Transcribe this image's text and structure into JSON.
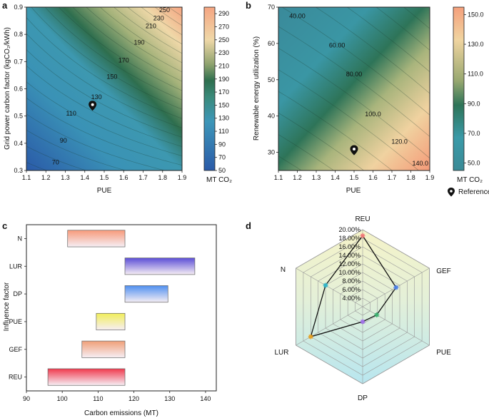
{
  "panels": {
    "a": {
      "label": "a"
    },
    "b": {
      "label": "b"
    },
    "c": {
      "label": "c"
    },
    "d": {
      "label": "d"
    }
  },
  "chart_data": [
    {
      "panel": "a",
      "type": "heatmap",
      "xlabel": "PUE",
      "ylabel": "Grid power carbon factor (kgCO₂/kWh)",
      "xlim": [
        1.1,
        1.9
      ],
      "ylim": [
        0.3,
        0.9
      ],
      "xticks": [
        "1.1",
        "1.2",
        "1.3",
        "1.4",
        "1.5",
        "1.6",
        "1.7",
        "1.8",
        "1.9"
      ],
      "yticks": [
        "0.3",
        "0.4",
        "0.5",
        "0.6",
        "0.7",
        "0.8",
        "0.9"
      ],
      "contour_labels": [
        {
          "text": "70",
          "x": 1.25,
          "y": 0.33
        },
        {
          "text": "90",
          "x": 1.29,
          "y": 0.41
        },
        {
          "text": "110",
          "x": 1.33,
          "y": 0.51
        },
        {
          "text": "130",
          "x": 1.46,
          "y": 0.57
        },
        {
          "text": "150",
          "x": 1.54,
          "y": 0.645
        },
        {
          "text": "170",
          "x": 1.6,
          "y": 0.705
        },
        {
          "text": "190",
          "x": 1.68,
          "y": 0.77
        },
        {
          "text": "210",
          "x": 1.74,
          "y": 0.83
        },
        {
          "text": "230",
          "x": 1.78,
          "y": 0.86
        },
        {
          "text": "250",
          "x": 1.81,
          "y": 0.89
        }
      ],
      "reference_marker": {
        "x": 1.44,
        "y": 0.53
      },
      "colorbar": {
        "title": "MT CO₂",
        "min": 50,
        "max": 300,
        "ticks": [
          "50",
          "70",
          "90",
          "110",
          "130",
          "150",
          "170",
          "190",
          "210",
          "230",
          "250",
          "270",
          "290"
        ]
      }
    },
    {
      "panel": "b",
      "type": "heatmap",
      "xlabel": "PUE",
      "ylabel": "Renewable energy utilization (%)",
      "xlim": [
        1.1,
        1.9
      ],
      "ylim": [
        25,
        70
      ],
      "xticks": [
        "1.1",
        "1.2",
        "1.3",
        "1.4",
        "1.5",
        "1.6",
        "1.7",
        "1.8",
        "1.9"
      ],
      "yticks": [
        "30",
        "40",
        "50",
        "60",
        "70"
      ],
      "contour_labels": [
        {
          "text": "40.00",
          "x": 1.2,
          "y": 67.5
        },
        {
          "text": "60.00",
          "x": 1.41,
          "y": 59.5
        },
        {
          "text": "80.00",
          "x": 1.5,
          "y": 51.5
        },
        {
          "text": "100.0",
          "x": 1.6,
          "y": 40.5
        },
        {
          "text": "120.0",
          "x": 1.74,
          "y": 33.0
        },
        {
          "text": "140.0",
          "x": 1.85,
          "y": 27.0
        }
      ],
      "reference_marker": {
        "x": 1.5,
        "y": 30
      },
      "colorbar": {
        "title": "MT CO₂",
        "min": 45,
        "max": 155,
        "ticks": [
          "50.0",
          "70.0",
          "90.0",
          "110.0",
          "130.0",
          "150.0"
        ]
      },
      "legend": {
        "label": "Reference"
      }
    },
    {
      "panel": "c",
      "type": "bar",
      "orientation": "horizontal",
      "xlabel": "Carbon emissions (MT)",
      "ylabel": "Influence factor",
      "xlim": [
        90,
        143
      ],
      "xticks": [
        "90",
        "100",
        "110",
        "120",
        "130",
        "140"
      ],
      "categories": [
        "N",
        "LUR",
        "DP",
        "PUE",
        "GEF",
        "REU"
      ],
      "ranges": [
        [
          101.5,
          117.5
        ],
        [
          117.5,
          137
        ],
        [
          117.5,
          129.5
        ],
        [
          109.5,
          117.5
        ],
        [
          105.5,
          117.5
        ],
        [
          96,
          117.5
        ]
      ],
      "colors": [
        "#f79a7a",
        "#5b4ed6",
        "#4f8ff0",
        "#f1ee5a",
        "#f0a078",
        "#f03a4e"
      ]
    },
    {
      "panel": "d",
      "type": "radar",
      "axes": [
        "REU",
        "GEF",
        "PUE",
        "DP",
        "LUR",
        "N"
      ],
      "rlim": [
        0.02,
        0.2
      ],
      "rticks": [
        "4.00%",
        "6.00%",
        "8.00%",
        "10.00%",
        "12.00%",
        "14.00%",
        "16.00%",
        "18.00%",
        "20.00%"
      ],
      "values": [
        0.186,
        0.11,
        0.058,
        0.055,
        0.16,
        0.12
      ],
      "marker_colors": [
        "#f07878",
        "#4a7ee8",
        "#3cb070",
        "#a070e8",
        "#e8a020",
        "#2fb5c8"
      ]
    }
  ]
}
